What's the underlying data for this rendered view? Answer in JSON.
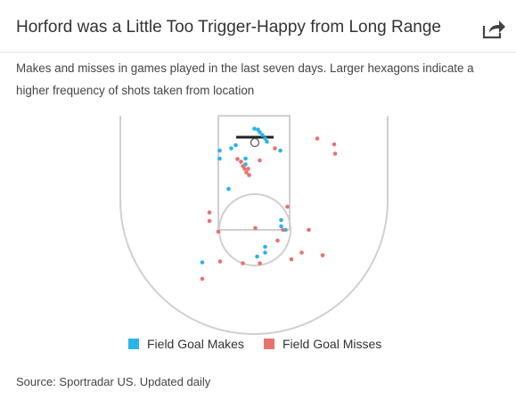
{
  "header": {
    "title": "Horford was a Little Too Trigger-Happy from Long Range",
    "share_icon": "share-icon"
  },
  "subtitle": "Makes and misses in games played in the last seven days. Larger hexagons indicate a higher frequency of shots taken from location",
  "legend": {
    "makes_label": "Field Goal Makes",
    "misses_label": "Field Goal Misses"
  },
  "colors": {
    "make": "#29b5e8",
    "miss": "#e8726f",
    "court_lines": "#d0d0d0"
  },
  "source": "Source: Sportradar US. Updated daily",
  "chart_data": {
    "type": "scatter",
    "x_unit": "feet from basket (left/right)",
    "y_unit": "feet from baseline",
    "series": [
      {
        "name": "Field Goal Makes",
        "points": [
          [
            -0.1,
            3.1
          ],
          [
            0.7,
            2.9
          ],
          [
            1.1,
            2.3
          ],
          [
            1.7,
            1.7
          ],
          [
            2.3,
            0.9
          ],
          [
            2.7,
            0.2
          ],
          [
            -7.9,
            -1.8
          ],
          [
            -5.3,
            -1.3
          ],
          [
            -4.3,
            -0.6
          ],
          [
            5.7,
            -1.8
          ],
          [
            -7.9,
            -3.6
          ],
          [
            -2.1,
            -3.6
          ],
          [
            -2.1,
            -4.9
          ],
          [
            -5.9,
            -10.4
          ],
          [
            5.9,
            -17.4
          ],
          [
            5.9,
            -18.8
          ],
          [
            6.9,
            -19.6
          ],
          [
            2.3,
            -23.4
          ],
          [
            2.3,
            -24.7
          ],
          [
            0.5,
            -25.6
          ],
          [
            -11.8,
            -26.9
          ]
        ]
      },
      {
        "name": "Field Goal Misses",
        "points": [
          [
            14.0,
            0.9
          ],
          [
            17.8,
            -0.4
          ],
          [
            18.0,
            -2.5
          ],
          [
            4.5,
            -1.3
          ],
          [
            -3.9,
            -3.7
          ],
          [
            -3.1,
            -4.3
          ],
          [
            -2.7,
            -5.3
          ],
          [
            -2.3,
            -5.9
          ],
          [
            -1.5,
            -5.9
          ],
          [
            -1.9,
            -6.7
          ],
          [
            -1.3,
            -7.3
          ],
          [
            1.1,
            -4.0
          ],
          [
            7.3,
            -14.4
          ],
          [
            -10.2,
            -15.7
          ],
          [
            -10.2,
            -17.6
          ],
          [
            -8.2,
            -20.0
          ],
          [
            0.1,
            -19.2
          ],
          [
            6.3,
            -19.6
          ],
          [
            12.1,
            -19.6
          ],
          [
            5.1,
            -22.0
          ],
          [
            10.5,
            -24.7
          ],
          [
            15.2,
            -25.3
          ],
          [
            8.2,
            -26.2
          ],
          [
            -7.8,
            -26.7
          ],
          [
            -2.7,
            -27.1
          ],
          [
            1.1,
            -27.1
          ],
          [
            -11.8,
            -30.6
          ]
        ]
      }
    ]
  }
}
